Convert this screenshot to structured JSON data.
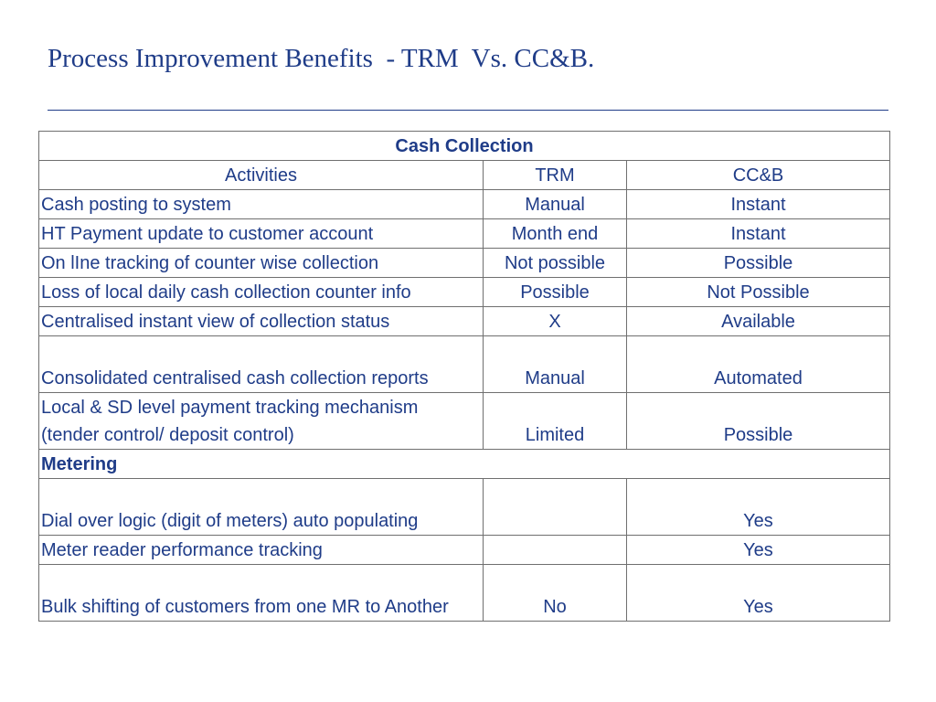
{
  "title": "Process Improvement Benefits  - TRM  Vs. CC&B.",
  "table": {
    "section_cash": "Cash Collection",
    "headers": [
      "Activities",
      "TRM",
      "CC&B"
    ],
    "cash_rows": [
      [
        "Cash posting to system",
        "Manual",
        "Instant"
      ],
      [
        "HT Payment update to customer account",
        "Month end",
        "Instant"
      ],
      [
        "On lIne tracking of counter wise collection",
        "Not possible",
        "Possible"
      ],
      [
        "Loss of local daily cash collection counter info",
        "Possible",
        "Not Possible"
      ],
      [
        "Centralised instant view of collection status",
        "X",
        "Available"
      ],
      [
        "Consolidated centralised cash collection reports",
        "Manual",
        "Automated"
      ],
      [
        "Local & SD level payment tracking mechanism (tender control/ deposit control)",
        "Limited",
        "Possible"
      ]
    ],
    "section_metering": "Metering",
    "metering_rows": [
      [
        "Dial over logic (digit of meters) auto populating",
        "",
        "Yes"
      ],
      [
        "Meter reader performance tracking",
        "",
        "Yes"
      ],
      [
        "Bulk shifting of customers from one MR to Another",
        "No",
        "Yes"
      ]
    ]
  }
}
